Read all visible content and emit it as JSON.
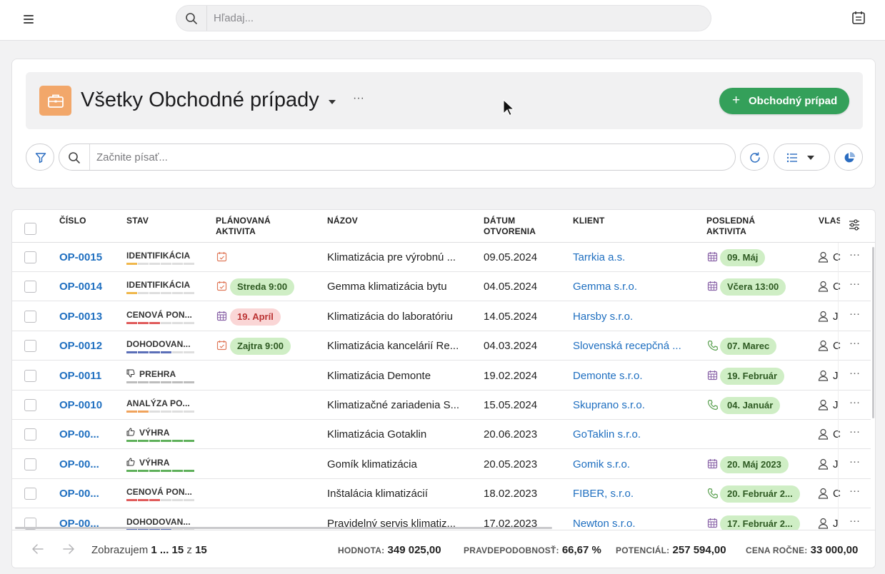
{
  "topbar": {
    "search_placeholder": "Hľadaj...",
    "icons": [
      "menu-icon",
      "search-icon",
      "calendar-icon"
    ]
  },
  "header": {
    "title": "Všetky Obchodné prípady",
    "more": "···",
    "new_button": "Obchodný prípad",
    "new_button_plus": "+",
    "icon_color": "#f2a76a",
    "accent_green": "#34a05a"
  },
  "toolbar": {
    "search_placeholder": "Začnite písať..."
  },
  "table": {
    "columns": [
      "ČÍSLO",
      "STAV",
      "PLÁNOVANÁ AKTIVITA",
      "NÁZOV",
      "DÁTUM OTVORENIA",
      "KLIENT",
      "POSLEDNÁ AKTIVITA",
      "VLAS"
    ],
    "rows": [
      {
        "num": "OP-0015",
        "stav": "IDENTIFIKÁCIA",
        "stav_icon": "",
        "stav_color": "#f0b84c",
        "stav_filled": 1,
        "plan_icon": "calendar-task-icon",
        "plan": "",
        "plan_kind": "",
        "nazov": "Klimatizácia pre výrobnú ...",
        "datum": "09.05.2024",
        "klient": "Tarrkia a.s.",
        "last_icon": "calendar-icon",
        "last": "09. Máj",
        "owner": "C",
        "more": "···"
      },
      {
        "num": "OP-0014",
        "stav": "IDENTIFIKÁCIA",
        "stav_icon": "",
        "stav_color": "#f0b84c",
        "stav_filled": 1,
        "plan_icon": "calendar-task-icon",
        "plan": "Streda 9:00",
        "plan_kind": "green",
        "nazov": "Gemma klimatizácia bytu",
        "datum": "04.05.2024",
        "klient": "Gemma s.r.o.",
        "last_icon": "calendar-icon",
        "last": "Včera 13:00",
        "owner": "C",
        "more": "···"
      },
      {
        "num": "OP-0013",
        "stav": "CENOVÁ PON...",
        "stav_icon": "",
        "stav_color": "#e05b5b",
        "stav_filled": 3,
        "plan_icon": "calendar-icon",
        "plan": "19. Apríl",
        "plan_kind": "red",
        "nazov": "Klimatizácia do laboratóriu",
        "datum": "14.05.2024",
        "klient": "Harsby s.r.o.",
        "last_icon": "",
        "last": "",
        "owner": "J",
        "more": "···"
      },
      {
        "num": "OP-0012",
        "stav": "DOHODOVAN...",
        "stav_icon": "",
        "stav_color": "#5b6fb8",
        "stav_filled": 4,
        "plan_icon": "calendar-task-icon",
        "plan": "Zajtra 9:00",
        "plan_kind": "green",
        "nazov": "Klimatizácia kancelárií Re...",
        "datum": "04.03.2024",
        "klient": "Slovenská recepčná ...",
        "last_icon": "phone-icon",
        "last": "07. Marec",
        "owner": "C",
        "more": "···"
      },
      {
        "num": "OP-0011",
        "stav": "PREHRA",
        "stav_icon": "thumbs-down-icon",
        "stav_color": "#bdbdbd",
        "stav_filled": 6,
        "plan_icon": "",
        "plan": "",
        "plan_kind": "",
        "nazov": "Klimatizácia Demonte",
        "datum": "19.02.2024",
        "klient": "Demonte s.r.o.",
        "last_icon": "calendar-icon",
        "last": "19. Február",
        "owner": "J",
        "more": "···"
      },
      {
        "num": "OP-0010",
        "stav": "ANALÝZA PO...",
        "stav_icon": "",
        "stav_color": "#f0a35c",
        "stav_filled": 2,
        "plan_icon": "",
        "plan": "",
        "plan_kind": "",
        "nazov": "Klimatizačné zariadenia S...",
        "datum": "15.05.2024",
        "klient": "Skuprano s.r.o.",
        "last_icon": "phone-icon",
        "last": "04. Január",
        "owner": "J",
        "more": "···"
      },
      {
        "num": "OP-00...",
        "stav": "VÝHRA",
        "stav_icon": "thumbs-up-icon",
        "stav_color": "#5eb05a",
        "stav_filled": 6,
        "plan_icon": "",
        "plan": "",
        "plan_kind": "",
        "nazov": "Klimatizácia Gotaklin",
        "datum": "20.06.2023",
        "klient": "GoTaklin s.r.o.",
        "last_icon": "",
        "last": "",
        "owner": "C",
        "more": "···"
      },
      {
        "num": "OP-00...",
        "stav": "VÝHRA",
        "stav_icon": "thumbs-up-icon",
        "stav_color": "#5eb05a",
        "stav_filled": 6,
        "plan_icon": "",
        "plan": "",
        "plan_kind": "",
        "nazov": "Gomík klimatizácia",
        "datum": "20.05.2023",
        "klient": "Gomik s.r.o.",
        "last_icon": "calendar-icon",
        "last": "20. Máj 2023",
        "owner": "J",
        "more": "···"
      },
      {
        "num": "OP-00...",
        "stav": "CENOVÁ PON...",
        "stav_icon": "",
        "stav_color": "#e05b5b",
        "stav_filled": 3,
        "plan_icon": "",
        "plan": "",
        "plan_kind": "",
        "nazov": "Inštalácia klimatizácií",
        "datum": "18.02.2023",
        "klient": "FIBER, s.r.o.",
        "last_icon": "phone-icon",
        "last": "20. Február 2...",
        "owner": "C",
        "more": "···"
      },
      {
        "num": "OP-00...",
        "stav": "DOHODOVAN...",
        "stav_icon": "",
        "stav_color": "#5b6fb8",
        "stav_filled": 4,
        "plan_icon": "",
        "plan": "",
        "plan_kind": "",
        "nazov": "Pravidelný servis klimatiz...",
        "datum": "17.02.2023",
        "klient": "Newton s.r.o.",
        "last_icon": "calendar-icon",
        "last": "17. Február 2...",
        "owner": "J",
        "more": "···"
      }
    ]
  },
  "footer": {
    "showing_prefix": "Zobrazujem",
    "range": "1 ... 15",
    "of": "z",
    "total": "15",
    "hodnota_label": "HODNOTA:",
    "hodnota": "349 025,00",
    "prav_label": "PRAVDEPODOBNOSŤ:",
    "prav": "66,67 %",
    "pot_label": "POTENCIÁL:",
    "pot": "257 594,00",
    "cena_label": "CENA ROČNE:",
    "cena": "33 000,00"
  }
}
